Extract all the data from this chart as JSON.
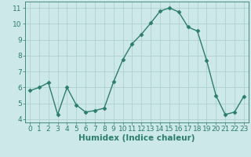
{
  "x": [
    0,
    1,
    2,
    3,
    4,
    5,
    6,
    7,
    8,
    9,
    10,
    11,
    12,
    13,
    14,
    15,
    16,
    17,
    18,
    19,
    20,
    21,
    22,
    23
  ],
  "y": [
    5.8,
    6.0,
    6.3,
    4.3,
    6.0,
    4.9,
    4.45,
    4.55,
    4.7,
    6.35,
    7.75,
    8.75,
    9.35,
    10.05,
    10.8,
    11.0,
    10.75,
    9.8,
    9.55,
    7.7,
    5.5,
    4.3,
    4.45,
    5.45
  ],
  "line_color": "#2d7d6e",
  "marker": "D",
  "marker_size": 2.5,
  "xlabel": "Humidex (Indice chaleur)",
  "ylim": [
    3.8,
    11.4
  ],
  "xlim": [
    -0.5,
    23.5
  ],
  "yticks": [
    4,
    5,
    6,
    7,
    8,
    9,
    10,
    11
  ],
  "xticks": [
    0,
    1,
    2,
    3,
    4,
    5,
    6,
    7,
    8,
    9,
    10,
    11,
    12,
    13,
    14,
    15,
    16,
    17,
    18,
    19,
    20,
    21,
    22,
    23
  ],
  "background_color": "#cce8e8",
  "grid_color": "#aacccc",
  "tick_color": "#2d7d6e",
  "label_color": "#2d7d6e",
  "xlabel_fontsize": 7.5,
  "tick_fontsize": 6.5,
  "linewidth": 1.0
}
